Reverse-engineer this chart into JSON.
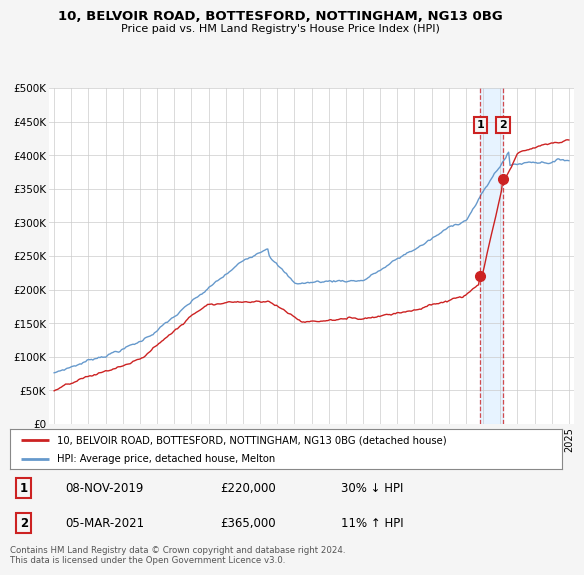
{
  "title": "10, BELVOIR ROAD, BOTTESFORD, NOTTINGHAM, NG13 0BG",
  "subtitle": "Price paid vs. HM Land Registry's House Price Index (HPI)",
  "hpi_color": "#6699cc",
  "price_color": "#cc2222",
  "vline_color": "#cc2222",
  "shade_color": "#ddeeff",
  "background_color": "#f5f5f5",
  "plot_bg": "#ffffff",
  "ylim": [
    0,
    500000
  ],
  "yticks": [
    0,
    50000,
    100000,
    150000,
    200000,
    250000,
    300000,
    350000,
    400000,
    450000,
    500000
  ],
  "ytick_labels": [
    "£0",
    "£50K",
    "£100K",
    "£150K",
    "£200K",
    "£250K",
    "£300K",
    "£350K",
    "£400K",
    "£450K",
    "£500K"
  ],
  "xlim_start": 1994.7,
  "xlim_end": 2025.3,
  "legend_label_red": "10, BELVOIR ROAD, BOTTESFORD, NOTTINGHAM, NG13 0BG (detached house)",
  "legend_label_blue": "HPI: Average price, detached house, Melton",
  "transaction1_date": "08-NOV-2019",
  "transaction1_price": "£220,000",
  "transaction1_hpi": "30% ↓ HPI",
  "transaction1_year": 2019.85,
  "transaction1_value": 220000,
  "transaction2_date": "05-MAR-2021",
  "transaction2_price": "£365,000",
  "transaction2_hpi": "11% ↑ HPI",
  "transaction2_year": 2021.17,
  "transaction2_value": 365000,
  "footer": "Contains HM Land Registry data © Crown copyright and database right 2024.\nThis data is licensed under the Open Government Licence v3.0."
}
